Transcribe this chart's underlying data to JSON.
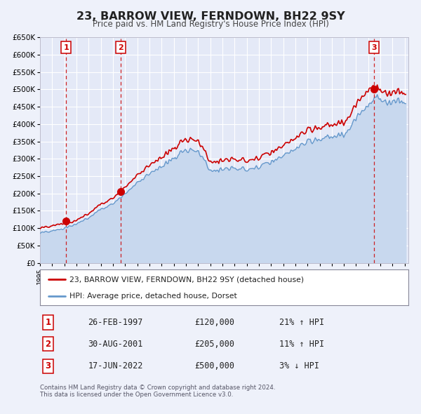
{
  "title": "23, BARROW VIEW, FERNDOWN, BH22 9SY",
  "subtitle": "Price paid vs. HM Land Registry's House Price Index (HPI)",
  "ylim": [
    0,
    650000
  ],
  "yticks": [
    0,
    50000,
    100000,
    150000,
    200000,
    250000,
    300000,
    350000,
    400000,
    450000,
    500000,
    550000,
    600000,
    650000
  ],
  "ytick_labels": [
    "£0",
    "£50K",
    "£100K",
    "£150K",
    "£200K",
    "£250K",
    "£300K",
    "£350K",
    "£400K",
    "£450K",
    "£500K",
    "£550K",
    "£600K",
    "£650K"
  ],
  "xlim_start": 1995.0,
  "xlim_end": 2025.3,
  "xticks": [
    1995,
    1996,
    1997,
    1998,
    1999,
    2000,
    2001,
    2002,
    2003,
    2004,
    2005,
    2006,
    2007,
    2008,
    2009,
    2010,
    2011,
    2012,
    2013,
    2014,
    2015,
    2016,
    2017,
    2018,
    2019,
    2020,
    2021,
    2022,
    2023,
    2024,
    2025
  ],
  "bg_color": "#eef1fa",
  "plot_bg_color": "#e4e9f7",
  "grid_color": "#ffffff",
  "hpi_line_color": "#6699cc",
  "hpi_fill_color": "#c8d8ee",
  "price_line_color": "#cc0000",
  "sale_marker_color": "#cc0000",
  "sale_points": [
    {
      "year": 1997.15,
      "price": 120000,
      "label": "1"
    },
    {
      "year": 2001.66,
      "price": 205000,
      "label": "2"
    },
    {
      "year": 2022.46,
      "price": 500000,
      "label": "3"
    }
  ],
  "vline_color": "#cc0000",
  "legend_entries": [
    "23, BARROW VIEW, FERNDOWN, BH22 9SY (detached house)",
    "HPI: Average price, detached house, Dorset"
  ],
  "table_rows": [
    {
      "num": "1",
      "date": "26-FEB-1997",
      "price": "£120,000",
      "hpi": "21% ↑ HPI"
    },
    {
      "num": "2",
      "date": "30-AUG-2001",
      "price": "£205,000",
      "hpi": "11% ↑ HPI"
    },
    {
      "num": "3",
      "date": "17-JUN-2022",
      "price": "£500,000",
      "hpi": "3% ↓ HPI"
    }
  ],
  "footnote1": "Contains HM Land Registry data © Crown copyright and database right 2024.",
  "footnote2": "This data is licensed under the Open Government Licence v3.0."
}
